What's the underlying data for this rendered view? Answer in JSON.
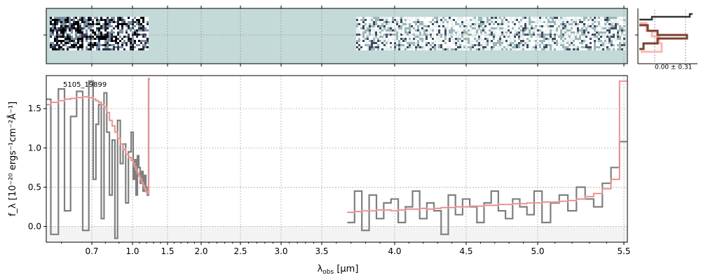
{
  "chart_data": {
    "type": "line",
    "object_label": "5105_19899",
    "xlabel_main": "λ",
    "xlabel_sub": "obs",
    "xlabel_unit": " [μm]",
    "ylabel": "f_λ [10⁻²⁰ ergs⁻¹cm⁻²Å⁻¹]",
    "ylim": [
      -0.2,
      1.92
    ],
    "yticks": [
      0.0,
      0.5,
      1.0,
      1.5
    ],
    "ytick_labels": [
      "0.0",
      "0.5",
      "1.0",
      "1.5"
    ],
    "xticks": [
      0.7,
      1.0,
      1.5,
      2.0,
      2.5,
      3.0,
      3.5,
      4.0,
      4.5,
      5.0,
      5.5
    ],
    "xtick_labels": [
      "0.7",
      "1.0",
      "1.5",
      "2.0",
      "2.5",
      "3.0",
      "3.5",
      "4.0",
      "4.5",
      "5.0",
      "5.5"
    ],
    "grid": true,
    "profile_label": "0.00 ± 0.31",
    "colors": {
      "data": "#7f7f7f",
      "model": "#ffb0b0",
      "model_dark": "#a05050",
      "spec2d_bg": "#c4dad9",
      "profile_dark": "#333333",
      "profile_brown": "#7a4030",
      "profile_pink": "#ffb6b6"
    },
    "series": [
      {
        "segment": "prism_blue",
        "x": [
          0.55,
          0.58,
          0.6,
          0.62,
          0.64,
          0.66,
          0.68,
          0.7,
          0.72,
          0.74,
          0.76,
          0.78,
          0.8,
          0.82,
          0.84,
          0.86,
          0.88,
          0.9,
          0.92,
          0.94,
          0.96,
          0.98,
          1.0,
          1.02,
          1.04,
          1.06,
          1.08,
          1.1,
          1.12,
          1.14,
          1.16,
          1.18,
          1.2,
          1.22,
          1.24
        ],
        "data": [
          1.62,
          -0.1,
          1.75,
          0.2,
          1.4,
          1.72,
          -0.05,
          1.85,
          0.6,
          1.3,
          1.55,
          0.1,
          1.7,
          1.2,
          0.4,
          1.1,
          -0.15,
          1.35,
          0.8,
          1.05,
          0.3,
          0.95,
          1.2,
          0.6,
          0.85,
          0.4,
          0.9,
          0.75,
          0.55,
          0.7,
          0.45,
          0.65,
          0.5,
          0.4,
          1.88
        ],
        "model": [
          1.55,
          1.58,
          1.6,
          1.62,
          1.63,
          1.64,
          1.65,
          1.64,
          1.62,
          1.6,
          1.58,
          1.55,
          1.52,
          1.45,
          1.35,
          1.28,
          1.2,
          1.12,
          1.05,
          0.98,
          0.92,
          0.88,
          0.84,
          0.8,
          0.76,
          0.72,
          0.68,
          0.64,
          0.6,
          0.56,
          0.52,
          0.48,
          0.44,
          0.42,
          1.88
        ]
      },
      {
        "segment": "prism_red",
        "x": [
          3.7,
          3.75,
          3.8,
          3.85,
          3.9,
          3.95,
          4.0,
          4.05,
          4.1,
          4.15,
          4.2,
          4.25,
          4.3,
          4.35,
          4.4,
          4.45,
          4.5,
          4.55,
          4.6,
          4.65,
          4.7,
          4.75,
          4.8,
          4.85,
          4.9,
          4.95,
          5.0,
          5.05,
          5.1,
          5.15,
          5.2,
          5.25,
          5.3,
          5.35,
          5.4,
          5.45,
          5.5
        ],
        "data": [
          0.05,
          0.45,
          -0.05,
          0.4,
          0.1,
          0.3,
          0.35,
          0.05,
          0.25,
          0.45,
          0.1,
          0.3,
          0.2,
          -0.1,
          0.4,
          0.15,
          0.35,
          0.25,
          0.05,
          0.3,
          0.45,
          0.2,
          0.1,
          0.35,
          0.25,
          0.15,
          0.45,
          0.05,
          0.3,
          0.4,
          0.2,
          0.5,
          0.35,
          0.25,
          0.55,
          0.75,
          1.08
        ],
        "model": [
          0.18,
          0.19,
          0.2,
          0.2,
          0.21,
          0.21,
          0.2,
          0.21,
          0.22,
          0.22,
          0.23,
          0.22,
          0.23,
          0.24,
          0.24,
          0.25,
          0.25,
          0.26,
          0.26,
          0.27,
          0.27,
          0.28,
          0.28,
          0.29,
          0.29,
          0.3,
          0.3,
          0.31,
          0.31,
          0.32,
          0.33,
          0.35,
          0.38,
          0.42,
          0.48,
          0.6,
          1.85
        ]
      }
    ]
  }
}
